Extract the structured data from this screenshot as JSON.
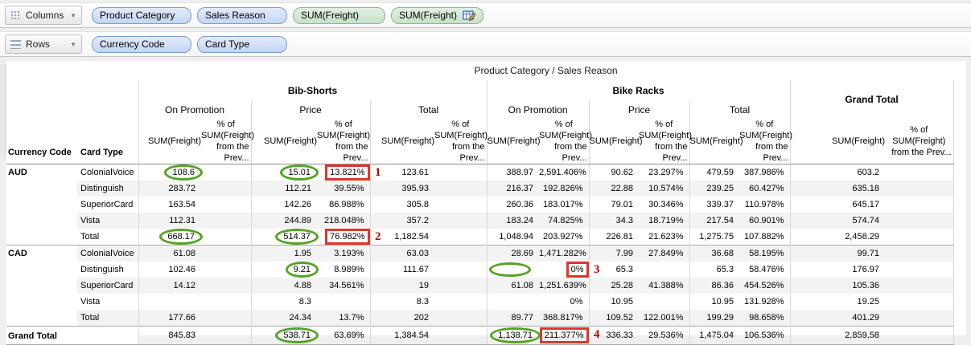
{
  "shelves": {
    "columns": {
      "label": "Columns",
      "icon": "grid-dots-icon",
      "pills": [
        {
          "label": "Product Category",
          "kind": "dimension"
        },
        {
          "label": "Sales Reason",
          "kind": "dimension"
        },
        {
          "label": "SUM(Freight)",
          "kind": "measure"
        },
        {
          "label": "SUM(Freight)",
          "kind": "measure",
          "icon": "table-calc-icon"
        }
      ]
    },
    "rows": {
      "label": "Rows",
      "icon": "row-lines-icon",
      "pills": [
        {
          "label": "Currency Code",
          "kind": "dimension"
        },
        {
          "label": "Card Type",
          "kind": "dimension"
        }
      ]
    }
  },
  "table": {
    "title": "Product Category / Sales Reason",
    "row_axis_headers": [
      "Currency Code",
      "Card Type"
    ],
    "groups": [
      {
        "label": "Bib-Shorts",
        "panes": [
          "On Promotion",
          "Price",
          "Total"
        ]
      },
      {
        "label": "Bike Racks",
        "panes": [
          "On Promotion",
          "Price",
          "Total"
        ]
      },
      {
        "label": "Grand Total",
        "panes": []
      }
    ],
    "measure_sum_label": "SUM(Freight)",
    "measure_pct_lines": [
      "% of",
      "SUM(Freight)",
      "from the Prev..."
    ],
    "rows": [
      {
        "currency": "AUD",
        "rowspan": 5,
        "card": "ColonialVoice",
        "cells": [
          "108.6",
          "",
          "15.01",
          "13.821%",
          "123.61",
          "",
          "388.97",
          "2,591.406%",
          "90.62",
          "23.297%",
          "479.59",
          "387.986%",
          "603.2",
          ""
        ]
      },
      {
        "card": "Distinguish",
        "cells": [
          "283.72",
          "",
          "112.21",
          "39.55%",
          "395.93",
          "",
          "216.37",
          "192.826%",
          "22.88",
          "10.574%",
          "239.25",
          "60.427%",
          "635.18",
          ""
        ]
      },
      {
        "card": "SuperiorCard",
        "cells": [
          "163.54",
          "",
          "142.26",
          "86.988%",
          "305.8",
          "",
          "260.36",
          "183.017%",
          "79.01",
          "30.346%",
          "339.37",
          "110.978%",
          "645.17",
          ""
        ]
      },
      {
        "card": "Vista",
        "cells": [
          "112.31",
          "",
          "244.89",
          "218.048%",
          "357.2",
          "",
          "183.24",
          "74.825%",
          "34.3",
          "18.719%",
          "217.54",
          "60.901%",
          "574.74",
          ""
        ]
      },
      {
        "card": "Total",
        "cells": [
          "668.17",
          "",
          "514.37",
          "76.982%",
          "1,182.54",
          "",
          "1,048.94",
          "203.927%",
          "226.81",
          "21.623%",
          "1,275.75",
          "107.882%",
          "2,458.29",
          ""
        ]
      },
      {
        "currency": "CAD",
        "rowspan": 5,
        "card": "ColonialVoice",
        "cells": [
          "61.08",
          "",
          "1.95",
          "3.193%",
          "63.03",
          "",
          "28.69",
          "1,471.282%",
          "7.99",
          "27.849%",
          "36.68",
          "58.195%",
          "99.71",
          ""
        ]
      },
      {
        "card": "Distinguish",
        "cells": [
          "102.46",
          "",
          "9.21",
          "8.989%",
          "111.67",
          "",
          "",
          "0%",
          "65.3",
          "",
          "65.3",
          "58.476%",
          "176.97",
          ""
        ]
      },
      {
        "card": "SuperiorCard",
        "cells": [
          "14.12",
          "",
          "4.88",
          "34.561%",
          "19",
          "",
          "61.08",
          "1,251.639%",
          "25.28",
          "41.388%",
          "86.36",
          "454.526%",
          "105.36",
          ""
        ]
      },
      {
        "card": "Vista",
        "cells": [
          "",
          "",
          "8.3",
          "",
          "8.3",
          "",
          "",
          "0%",
          "10.95",
          "",
          "10.95",
          "131.928%",
          "19.25",
          ""
        ]
      },
      {
        "card": "Total",
        "cells": [
          "177.66",
          "",
          "24.34",
          "13.7%",
          "202",
          "",
          "89.77",
          "368.817%",
          "109.52",
          "122.001%",
          "199.29",
          "98.658%",
          "401.29",
          ""
        ]
      },
      {
        "currency": "Grand Total",
        "grand": true,
        "cells": [
          "845.83",
          "",
          "538.71",
          "63.69%",
          "1,384.54",
          "",
          "1,138.71",
          "211.377%",
          "336.33",
          "29.536%",
          "1,475.04",
          "106.536%",
          "2,859.58",
          ""
        ]
      }
    ]
  },
  "annotations": [
    {
      "row": 0,
      "cell": 0,
      "type": "circle"
    },
    {
      "row": 0,
      "cell": 2,
      "type": "circle"
    },
    {
      "row": 0,
      "cell": 3,
      "type": "redbox",
      "marker": "1"
    },
    {
      "row": 4,
      "cell": 0,
      "type": "circle"
    },
    {
      "row": 4,
      "cell": 2,
      "type": "circle"
    },
    {
      "row": 4,
      "cell": 3,
      "type": "redbox",
      "marker": "2"
    },
    {
      "row": 6,
      "cell": 2,
      "type": "circle"
    },
    {
      "row": 6,
      "cell": 6,
      "type": "circle"
    },
    {
      "row": 6,
      "cell": 7,
      "type": "redbox",
      "marker": "3"
    },
    {
      "row": 10,
      "cell": 2,
      "type": "circle"
    },
    {
      "row": 10,
      "cell": 6,
      "type": "circle"
    },
    {
      "row": 10,
      "cell": 7,
      "type": "redbox",
      "marker": "4"
    }
  ],
  "colors": {
    "annotation_green": "#55a423",
    "annotation_red": "#e0352b",
    "marker_red": "#c00000",
    "dimension_pill": "#c4d5f4",
    "measure_pill": "#c6e1c8"
  }
}
